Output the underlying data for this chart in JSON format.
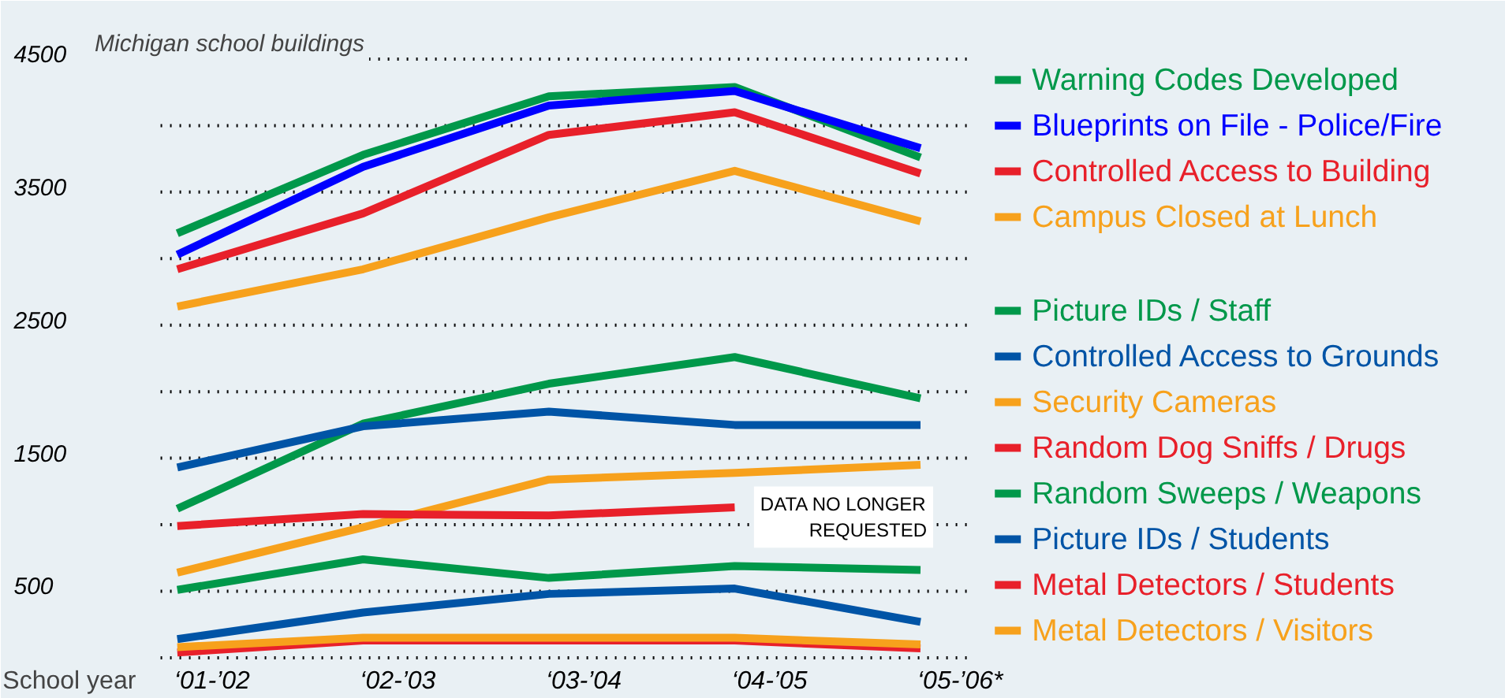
{
  "chart_data": {
    "type": "line",
    "title": "Michigan school buildings",
    "xlabel": "School year",
    "categories": [
      "‘01-’02",
      "‘02-’03",
      "‘03-’04",
      "‘04-’05",
      "‘05-’06*"
    ],
    "series": [
      {
        "name": "Warning Codes Developed",
        "color": "#00984a",
        "values": [
          3190,
          3780,
          4220,
          4290,
          3760
        ]
      },
      {
        "name": "Blueprints on File - Police/Fire",
        "color": "#0000ff",
        "values": [
          3030,
          3690,
          4150,
          4260,
          3830
        ]
      },
      {
        "name": "Controlled Access to Building",
        "color": "#e8202a",
        "values": [
          2920,
          3340,
          3930,
          4100,
          3640
        ]
      },
      {
        "name": "Campus Closed at Lunch",
        "color": "#f7a11c",
        "values": [
          2640,
          2920,
          3310,
          3660,
          3280
        ]
      },
      {
        "name": "Picture IDs / Staff",
        "color": "#00984a",
        "values": [
          1120,
          1760,
          2060,
          2260,
          1950
        ]
      },
      {
        "name": "Controlled Access to Grounds",
        "color": "#0054a6",
        "values": [
          1430,
          1740,
          1850,
          1750,
          1750
        ]
      },
      {
        "name": "Security Cameras",
        "color": "#f7a11c",
        "values": [
          640,
          980,
          1340,
          1390,
          1450
        ]
      },
      {
        "name": "Random Dog Sniffs / Drugs",
        "color": "#e8202a",
        "values": [
          990,
          1080,
          1070,
          1130,
          null
        ]
      },
      {
        "name": "Random Sweeps / Weapons",
        "color": "#00984a",
        "values": [
          510,
          740,
          600,
          690,
          660
        ]
      },
      {
        "name": "Picture IDs / Students",
        "color": "#0054a6",
        "values": [
          140,
          340,
          480,
          520,
          270
        ]
      },
      {
        "name": "Metal Detectors / Students",
        "color": "#e8202a",
        "values": [
          40,
          130,
          130,
          130,
          70
        ]
      },
      {
        "name": "Metal Detectors / Visitors",
        "color": "#f7a11c",
        "values": [
          80,
          150,
          150,
          150,
          100
        ]
      }
    ],
    "ylim": [
      0,
      4500
    ],
    "yticks": [
      {
        "value": 0,
        "label": null
      },
      500,
      {
        "value": 1000,
        "label": null
      },
      1500,
      {
        "value": 2000,
        "label": null
      },
      2500,
      {
        "value": 3000,
        "label": null
      },
      3500,
      {
        "value": 4000,
        "label": null
      },
      4500
    ],
    "grid": "y",
    "legend": "right",
    "annotations": [
      "DATA NO LONGER\nREQUESTED"
    ]
  }
}
